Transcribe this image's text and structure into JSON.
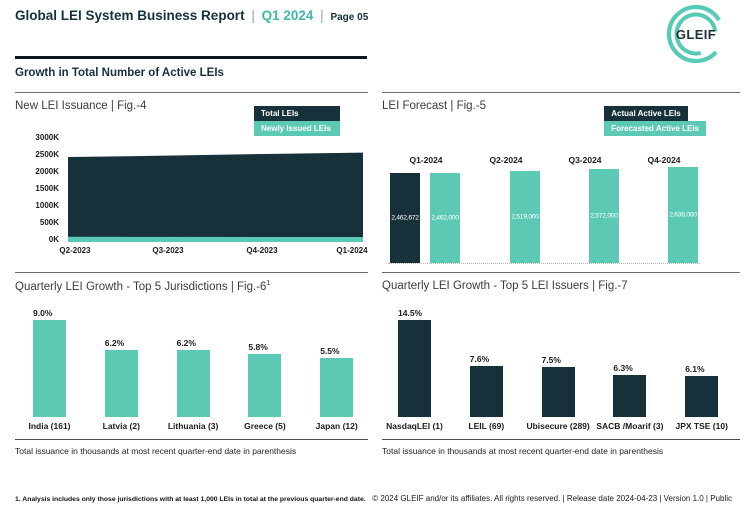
{
  "header": {
    "title": "Global LEI System Business Report",
    "separator": "|",
    "period": "Q1 2024",
    "page": "Page 05",
    "logo_text": "GLEIF"
  },
  "section": {
    "title": "Growth in Total Number of Active LEIs"
  },
  "colors": {
    "dark": "#17313a",
    "teal": "#5cc9b4",
    "accent_text": "#3fb8a6",
    "logo_teal": "#57cab6"
  },
  "footer": {
    "footnote": "1. Analysis includes only those jurisdictions with at least 1,000 LEIs in total at the previous quarter-end date.",
    "copyright": "© 2024 GLEIF and/or its affiliates. All rights reserved. | Release date 2024-04-23 | Version 1.0 | Public"
  },
  "chart_data": [
    {
      "id": "fig4",
      "type": "area",
      "title": "New LEI Issuance | Fig.-4",
      "legend": [
        {
          "label": "Total LEIs",
          "color": "dark"
        },
        {
          "label": "Newly Issued LEIs",
          "color": "teal"
        }
      ],
      "legend_position": "top-right",
      "x": [
        "Q2-2023",
        "Q3-2023",
        "Q4-2023",
        "Q1-2024"
      ],
      "series": [
        {
          "name": "Total LEIs",
          "values": [
            2440000,
            2480000,
            2530000,
            2570000
          ]
        },
        {
          "name": "Newly Issued LEIs",
          "values": [
            65000,
            62000,
            60000,
            58000
          ]
        }
      ],
      "yticks": [
        "3000K",
        "2500K",
        "2000K",
        "1500K",
        "1000K",
        "500K",
        "0K"
      ],
      "ylim": [
        0,
        3000000
      ],
      "grid": false
    },
    {
      "id": "fig5",
      "type": "bar",
      "title": "LEI Forecast | Fig.-5",
      "legend": [
        {
          "label": "Actual Active LEIs",
          "color": "dark"
        },
        {
          "label": "Forecasted Active LEIs",
          "color": "teal"
        }
      ],
      "legend_position": "top-right",
      "categories": [
        "Q1-2024",
        "Q2-2024",
        "Q3-2024",
        "Q4-2024"
      ],
      "groups": [
        {
          "category": "Q1-2024",
          "bars": [
            {
              "series": "Actual Active LEIs",
              "value": 2462672,
              "label": "2,462,672",
              "color": "dark"
            },
            {
              "series": "Forecasted Active LEIs",
              "value": 2462000,
              "label": "2,462,000",
              "color": "teal"
            }
          ]
        },
        {
          "category": "Q2-2024",
          "bars": [
            {
              "series": "Forecasted Active LEIs",
              "value": 2519000,
              "label": "2,519,000",
              "color": "teal"
            }
          ]
        },
        {
          "category": "Q3-2024",
          "bars": [
            {
              "series": "Forecasted Active LEIs",
              "value": 2572000,
              "label": "2,572,000",
              "color": "teal"
            }
          ]
        },
        {
          "category": "Q4-2024",
          "bars": [
            {
              "series": "Forecasted Active LEIs",
              "value": 2638000,
              "label": "2,638,000",
              "color": "teal"
            }
          ]
        }
      ]
    },
    {
      "id": "fig6",
      "type": "bar",
      "title": "Quarterly LEI Growth - Top 5 Jurisdictions | Fig.-6",
      "title_sup": "1",
      "categories": [
        "India (161)",
        "Latvia (2)",
        "Lithuania (3)",
        "Greece (5)",
        "Japan (12)"
      ],
      "values": [
        9.0,
        6.2,
        6.2,
        5.8,
        5.5
      ],
      "value_labels": [
        "9.0%",
        "6.2%",
        "6.2%",
        "5.8%",
        "5.5%"
      ],
      "bar_color": "teal",
      "footnote": "Total issuance in thousands at most recent quarter-end date in parenthesis"
    },
    {
      "id": "fig7",
      "type": "bar",
      "title": "Quarterly LEI Growth - Top 5 LEI Issuers | Fig.-7",
      "categories": [
        "NasdaqLEI (1)",
        "LEIL (69)",
        "Ubisecure (289)",
        "SACB /Moarif (3)",
        "JPX TSE (10)"
      ],
      "values": [
        14.5,
        7.6,
        7.5,
        6.3,
        6.1
      ],
      "value_labels": [
        "14.5%",
        "7.6%",
        "7.5%",
        "6.3%",
        "6.1%"
      ],
      "bar_color": "dark",
      "footnote": "Total issuance in thousands at most recent quarter-end date in parenthesis"
    }
  ]
}
